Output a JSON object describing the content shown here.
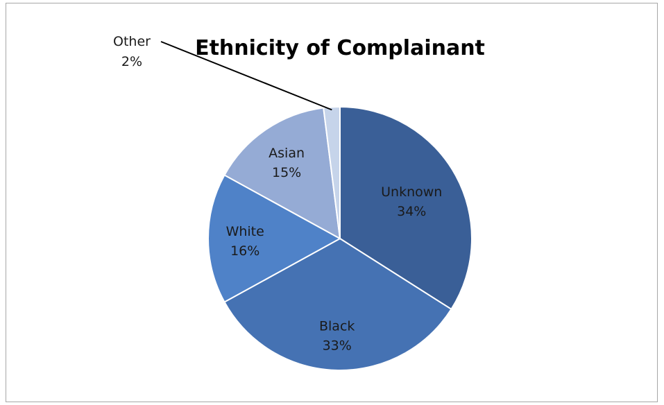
{
  "chart_data": {
    "type": "pie",
    "title": "Ethnicity of Complainant",
    "slices": [
      {
        "name": "Unknown",
        "value": 34,
        "label": "34%",
        "color": "#3a5f97"
      },
      {
        "name": "Black",
        "value": 33,
        "label": "33%",
        "color": "#4572b3"
      },
      {
        "name": "White",
        "value": 16,
        "label": "16%",
        "color": "#4f82c8"
      },
      {
        "name": "Asian",
        "value": 15,
        "label": "15%",
        "color": "#95abd5"
      },
      {
        "name": "Other",
        "value": 2,
        "label": "2%",
        "color": "#c6d4ea"
      }
    ],
    "legend": "none",
    "grid": false
  }
}
